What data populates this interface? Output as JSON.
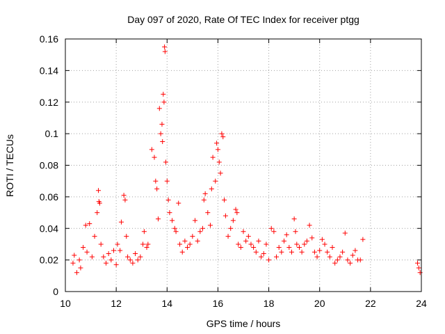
{
  "chart_data": {
    "type": "scatter",
    "title": "Day 097 of 2020, Rate Of TEC Index for receiver ptgg",
    "xlabel": "GPS time / hours",
    "ylabel": "ROTI / TECUs",
    "xlim": [
      10,
      24
    ],
    "ylim": [
      0,
      0.16
    ],
    "x_ticks": [
      10,
      12,
      14,
      16,
      18,
      20,
      22,
      24
    ],
    "x_tick_labels": [
      "10",
      "12",
      "14",
      "16",
      "18",
      "20",
      "22",
      "24"
    ],
    "y_ticks": [
      0,
      0.02,
      0.04,
      0.06,
      0.08,
      0.1,
      0.12,
      0.14,
      0.16
    ],
    "y_tick_labels": [
      "0",
      "0.02",
      "0.04",
      "0.06",
      "0.08",
      "0.1",
      "0.12",
      "0.14",
      "0.16"
    ],
    "grid": true,
    "marker": "plus",
    "color": "#ff0000",
    "series": [
      {
        "name": "",
        "x": [
          10.3,
          10.35,
          10.45,
          10.55,
          10.6,
          10.7,
          10.8,
          10.85,
          10.95,
          11.05,
          11.15,
          11.25,
          11.3,
          11.32,
          11.35,
          11.4,
          11.5,
          11.6,
          11.7,
          11.8,
          11.9,
          12.0,
          12.05,
          12.15,
          12.2,
          12.3,
          12.35,
          12.4,
          12.45,
          12.55,
          12.65,
          12.75,
          12.85,
          12.95,
          13.05,
          13.1,
          13.2,
          13.25,
          13.4,
          13.5,
          13.55,
          13.6,
          13.65,
          13.7,
          13.75,
          13.8,
          13.82,
          13.85,
          13.88,
          13.9,
          13.92,
          13.95,
          14.0,
          14.05,
          14.1,
          14.2,
          14.3,
          14.35,
          14.45,
          14.5,
          14.6,
          14.7,
          14.8,
          14.9,
          15.0,
          15.1,
          15.2,
          15.3,
          15.4,
          15.45,
          15.5,
          15.6,
          15.7,
          15.75,
          15.8,
          15.9,
          15.95,
          16.0,
          16.05,
          16.1,
          16.15,
          16.2,
          16.25,
          16.3,
          16.4,
          16.5,
          16.6,
          16.7,
          16.75,
          16.8,
          16.9,
          17.0,
          17.1,
          17.2,
          17.3,
          17.4,
          17.5,
          17.6,
          17.7,
          17.8,
          17.9,
          18.0,
          18.1,
          18.2,
          18.3,
          18.4,
          18.5,
          18.6,
          18.7,
          18.8,
          18.9,
          19.0,
          19.05,
          19.1,
          19.2,
          19.3,
          19.4,
          19.5,
          19.6,
          19.7,
          19.8,
          19.9,
          20.0,
          20.1,
          20.2,
          20.3,
          20.4,
          20.5,
          20.6,
          20.7,
          20.8,
          20.9,
          21.0,
          21.1,
          21.2,
          21.3,
          21.4,
          21.5,
          21.6,
          21.7,
          23.85,
          23.9,
          23.95
        ],
        "y": [
          0.018,
          0.023,
          0.012,
          0.02,
          0.015,
          0.028,
          0.042,
          0.025,
          0.043,
          0.022,
          0.035,
          0.05,
          0.064,
          0.057,
          0.056,
          0.03,
          0.022,
          0.018,
          0.024,
          0.02,
          0.026,
          0.017,
          0.03,
          0.026,
          0.044,
          0.061,
          0.058,
          0.035,
          0.022,
          0.02,
          0.018,
          0.024,
          0.02,
          0.022,
          0.03,
          0.038,
          0.028,
          0.03,
          0.09,
          0.085,
          0.07,
          0.065,
          0.046,
          0.116,
          0.1,
          0.106,
          0.095,
          0.125,
          0.12,
          0.155,
          0.152,
          0.082,
          0.07,
          0.058,
          0.05,
          0.045,
          0.04,
          0.038,
          0.056,
          0.03,
          0.025,
          0.032,
          0.028,
          0.03,
          0.035,
          0.045,
          0.032,
          0.038,
          0.04,
          0.058,
          0.062,
          0.05,
          0.042,
          0.065,
          0.085,
          0.07,
          0.094,
          0.09,
          0.082,
          0.075,
          0.1,
          0.098,
          0.058,
          0.048,
          0.035,
          0.04,
          0.045,
          0.052,
          0.05,
          0.03,
          0.028,
          0.038,
          0.032,
          0.035,
          0.03,
          0.028,
          0.025,
          0.032,
          0.022,
          0.024,
          0.03,
          0.02,
          0.04,
          0.038,
          0.022,
          0.028,
          0.025,
          0.032,
          0.036,
          0.028,
          0.025,
          0.046,
          0.038,
          0.03,
          0.028,
          0.025,
          0.03,
          0.032,
          0.042,
          0.034,
          0.025,
          0.022,
          0.026,
          0.033,
          0.03,
          0.025,
          0.022,
          0.028,
          0.018,
          0.02,
          0.022,
          0.025,
          0.037,
          0.02,
          0.018,
          0.023,
          0.026,
          0.02,
          0.02,
          0.033,
          0.018,
          0.015,
          0.012
        ]
      }
    ]
  }
}
